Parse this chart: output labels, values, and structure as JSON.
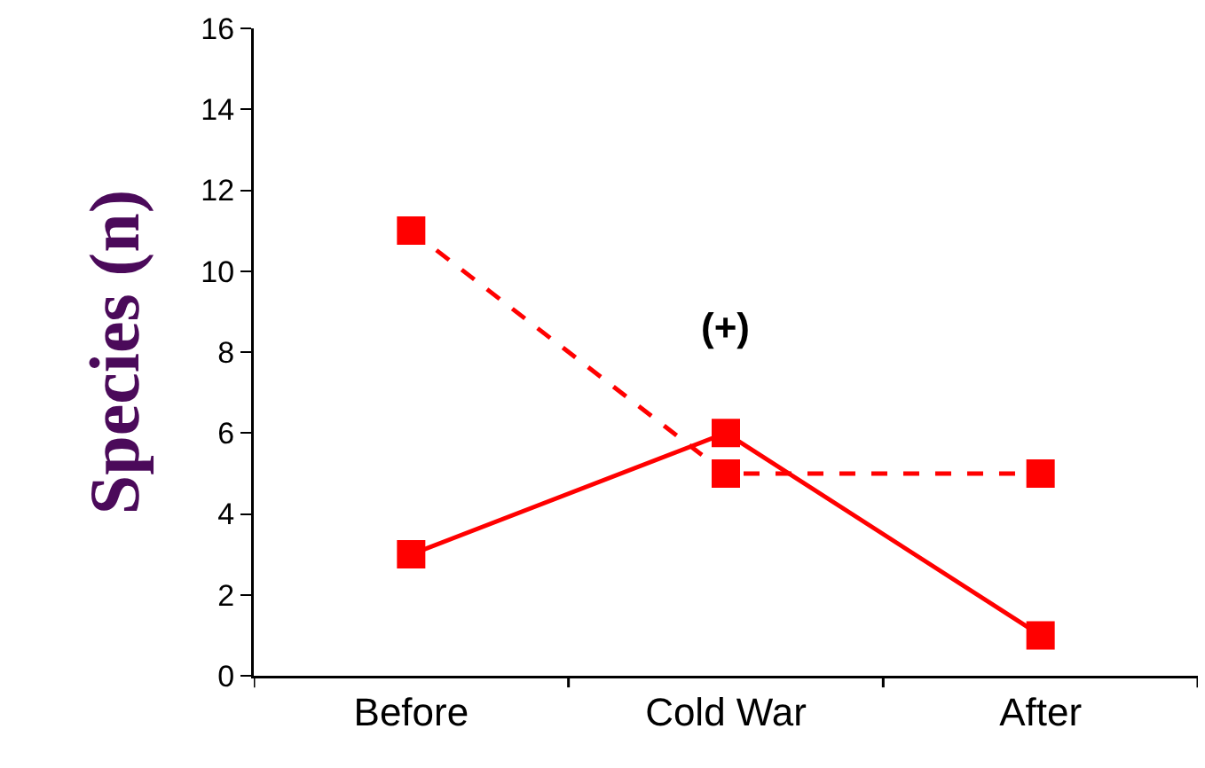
{
  "chart_data": {
    "type": "line",
    "ylabel": "Species (n)",
    "categories": [
      "Before",
      "Cold War",
      "After"
    ],
    "series": [
      {
        "color": "#ff0000",
        "values": [
          11,
          5,
          5
        ],
        "line_style": "dashed"
      },
      {
        "color": "#ff0000",
        "values": [
          3,
          6,
          1
        ],
        "line_style": "solid"
      }
    ],
    "ylim": [
      0,
      16
    ],
    "yticks": [
      0,
      2,
      4,
      6,
      8,
      10,
      12,
      14,
      16
    ],
    "marker": "square",
    "grid": false,
    "annotations": [
      "(+)"
    ]
  }
}
